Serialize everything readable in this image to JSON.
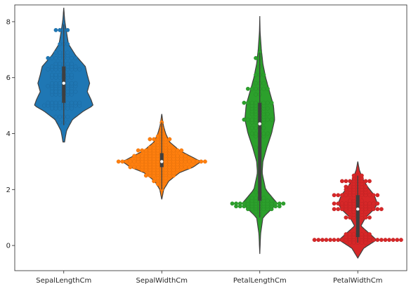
{
  "chart_data": {
    "type": "violin",
    "title": "",
    "xlabel": "",
    "ylabel": "",
    "ylim": [
      -0.9,
      8.6
    ],
    "yticks": [
      0,
      2,
      4,
      6,
      8
    ],
    "categories": [
      "SepalLengthCm",
      "SepalWidthCm",
      "PetalLengthCm",
      "PetalWidthCm"
    ],
    "grid": false,
    "legend": "none",
    "overlay": "swarm",
    "series": [
      {
        "category": "SepalLengthCm",
        "color": "#1f77b4",
        "min": 4.3,
        "q1": 5.1,
        "median": 5.8,
        "q3": 6.4,
        "max": 7.9,
        "kde_extent": [
          3.7,
          8.5
        ],
        "density": [
          [
            3.7,
            0.02
          ],
          [
            4.1,
            0.07
          ],
          [
            4.5,
            0.22
          ],
          [
            4.8,
            0.5
          ],
          [
            5.0,
            0.75
          ],
          [
            5.2,
            0.7
          ],
          [
            5.5,
            0.6
          ],
          [
            5.8,
            0.66
          ],
          [
            6.1,
            0.6
          ],
          [
            6.4,
            0.55
          ],
          [
            6.8,
            0.3
          ],
          [
            7.2,
            0.12
          ],
          [
            7.7,
            0.06
          ],
          [
            8.1,
            0.02
          ],
          [
            8.5,
            0.0
          ]
        ],
        "swarm": [
          [
            5.0,
            10
          ],
          [
            5.1,
            9
          ],
          [
            5.4,
            6
          ],
          [
            5.7,
            8
          ],
          [
            6.0,
            6
          ],
          [
            6.1,
            6
          ],
          [
            6.3,
            9
          ],
          [
            6.4,
            7
          ],
          [
            6.7,
            8
          ],
          [
            6.8,
            3
          ],
          [
            7.7,
            4
          ],
          [
            4.4,
            3
          ],
          [
            4.9,
            6
          ],
          [
            5.6,
            6
          ],
          [
            5.8,
            7
          ],
          [
            6.5,
            5
          ],
          [
            7.2,
            3
          ],
          [
            5.5,
            7
          ],
          [
            6.9,
            4
          ],
          [
            4.6,
            4
          ]
        ]
      },
      {
        "category": "SepalWidthCm",
        "color": "#ff7f0e",
        "min": 2.0,
        "q1": 2.8,
        "median": 3.0,
        "q3": 3.3,
        "max": 4.4,
        "kde_extent": [
          1.65,
          4.7
        ],
        "density": [
          [
            1.65,
            0.0
          ],
          [
            2.0,
            0.05
          ],
          [
            2.3,
            0.18
          ],
          [
            2.6,
            0.45
          ],
          [
            2.8,
            0.8
          ],
          [
            3.0,
            1.0
          ],
          [
            3.2,
            0.72
          ],
          [
            3.4,
            0.45
          ],
          [
            3.7,
            0.2
          ],
          [
            4.0,
            0.1
          ],
          [
            4.3,
            0.04
          ],
          [
            4.7,
            0.0
          ]
        ],
        "swarm": [
          [
            2.5,
            8
          ],
          [
            2.6,
            7
          ],
          [
            2.7,
            10
          ],
          [
            2.8,
            16
          ],
          [
            2.9,
            11
          ],
          [
            3.0,
            26
          ],
          [
            3.1,
            13
          ],
          [
            3.2,
            14
          ],
          [
            3.3,
            8
          ],
          [
            3.4,
            12
          ],
          [
            3.5,
            6
          ],
          [
            3.6,
            4
          ],
          [
            3.7,
            3
          ],
          [
            3.8,
            6
          ],
          [
            3.9,
            2
          ],
          [
            4.0,
            1
          ],
          [
            4.1,
            1
          ],
          [
            4.2,
            1
          ],
          [
            4.4,
            1
          ],
          [
            2.3,
            4
          ],
          [
            2.4,
            3
          ],
          [
            2.2,
            2
          ],
          [
            2.0,
            1
          ]
        ]
      },
      {
        "category": "PetalLengthCm",
        "color": "#2ca02c",
        "min": 1.0,
        "q1": 1.6,
        "median": 4.35,
        "q3": 5.1,
        "max": 6.9,
        "kde_extent": [
          -0.3,
          8.2
        ],
        "density": [
          [
            -0.3,
            0.0
          ],
          [
            0.4,
            0.02
          ],
          [
            1.0,
            0.08
          ],
          [
            1.5,
            0.45
          ],
          [
            2.0,
            0.15
          ],
          [
            2.6,
            0.06
          ],
          [
            3.0,
            0.08
          ],
          [
            3.5,
            0.18
          ],
          [
            4.0,
            0.3
          ],
          [
            4.5,
            0.38
          ],
          [
            5.0,
            0.35
          ],
          [
            5.5,
            0.25
          ],
          [
            6.0,
            0.15
          ],
          [
            6.5,
            0.08
          ],
          [
            7.0,
            0.04
          ],
          [
            7.6,
            0.01
          ],
          [
            8.2,
            0.0
          ]
        ],
        "swarm": [
          [
            1.3,
            7
          ],
          [
            1.4,
            12
          ],
          [
            1.5,
            14
          ],
          [
            1.6,
            7
          ],
          [
            1.7,
            4
          ],
          [
            1.2,
            2
          ],
          [
            1.9,
            2
          ],
          [
            1.1,
            1
          ],
          [
            1.0,
            1
          ],
          [
            3.5,
            2
          ],
          [
            3.9,
            3
          ],
          [
            4.0,
            5
          ],
          [
            4.2,
            4
          ],
          [
            4.4,
            4
          ],
          [
            4.5,
            8
          ],
          [
            4.6,
            3
          ],
          [
            4.7,
            5
          ],
          [
            4.8,
            4
          ],
          [
            4.9,
            5
          ],
          [
            5.0,
            4
          ],
          [
            5.1,
            8
          ],
          [
            5.4,
            2
          ],
          [
            5.6,
            6
          ],
          [
            5.8,
            3
          ],
          [
            6.1,
            3
          ],
          [
            6.4,
            1
          ],
          [
            6.7,
            2
          ],
          [
            6.9,
            1
          ]
        ]
      },
      {
        "category": "PetalWidthCm",
        "color": "#d62728",
        "min": 0.1,
        "q1": 0.3,
        "median": 1.3,
        "q3": 1.8,
        "max": 2.5,
        "kde_extent": [
          -0.45,
          3.0
        ],
        "density": [
          [
            -0.45,
            0.0
          ],
          [
            -0.1,
            0.15
          ],
          [
            0.2,
            0.48
          ],
          [
            0.4,
            0.32
          ],
          [
            0.7,
            0.08
          ],
          [
            1.0,
            0.2
          ],
          [
            1.3,
            0.42
          ],
          [
            1.5,
            0.5
          ],
          [
            1.8,
            0.42
          ],
          [
            2.1,
            0.25
          ],
          [
            2.4,
            0.12
          ],
          [
            2.7,
            0.04
          ],
          [
            3.0,
            0.0
          ]
        ],
        "swarm": [
          [
            0.2,
            29
          ],
          [
            0.1,
            5
          ],
          [
            0.3,
            7
          ],
          [
            0.4,
            7
          ],
          [
            0.5,
            1
          ],
          [
            0.6,
            1
          ],
          [
            1.0,
            7
          ],
          [
            1.1,
            3
          ],
          [
            1.2,
            5
          ],
          [
            1.3,
            13
          ],
          [
            1.4,
            8
          ],
          [
            1.5,
            12
          ],
          [
            1.6,
            4
          ],
          [
            1.7,
            2
          ],
          [
            1.8,
            12
          ],
          [
            1.9,
            5
          ],
          [
            2.0,
            6
          ],
          [
            2.1,
            6
          ],
          [
            2.2,
            3
          ],
          [
            2.3,
            8
          ],
          [
            2.4,
            3
          ],
          [
            2.5,
            3
          ]
        ]
      }
    ]
  }
}
